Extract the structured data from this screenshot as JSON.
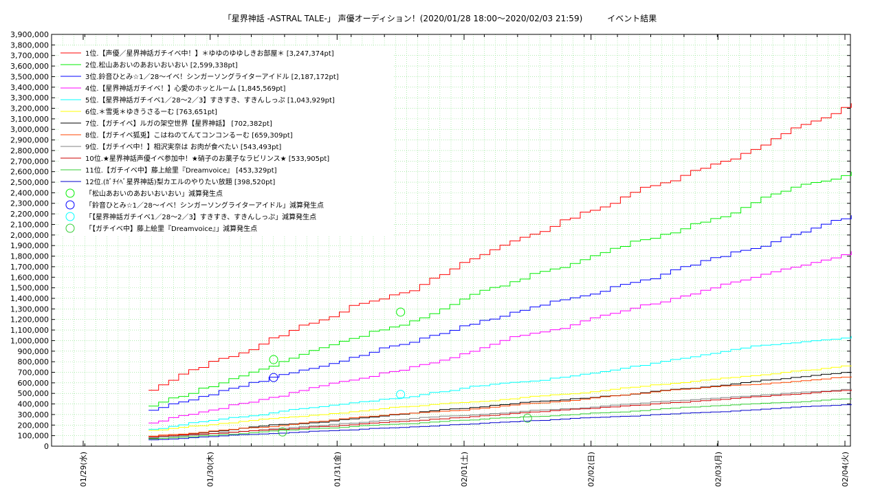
{
  "chart_data": {
    "type": "line",
    "title": "「星界神話 -ASTRAL TALE-」 声優オーディション！(2020/01/28 18:00〜2020/02/03 21:59)　　　イベント結果",
    "ylim": [
      0,
      3900000
    ],
    "y_ticks": [
      "0",
      "100,000",
      "200,000",
      "300,000",
      "400,000",
      "500,000",
      "600,000",
      "700,000",
      "800,000",
      "900,000",
      "1,000,000",
      "1,100,000",
      "1,200,000",
      "1,300,000",
      "1,400,000",
      "1,500,000",
      "1,600,000",
      "1,700,000",
      "1,800,000",
      "1,900,000",
      "2,000,000",
      "2,100,000",
      "2,200,000",
      "2,300,000",
      "2,400,000",
      "2,500,000",
      "2,600,000",
      "2,700,000",
      "2,800,000",
      "2,900,000",
      "3,000,000",
      "3,100,000",
      "3,200,000",
      "3,300,000",
      "3,400,000",
      "3,500,000",
      "3,600,000",
      "3,700,000",
      "3,800,000",
      "3,900,000"
    ],
    "x_ticks": [
      "01/29(水)",
      "01/30(木)",
      "01/31(金)",
      "02/01(土)",
      "02/02(日)",
      "02/03(月)",
      "02/04(火)"
    ],
    "x_start": "01/29 00:00",
    "x_end": "02/04 00:00",
    "grid": true,
    "legend_position": "top-left",
    "series": [
      {
        "name": "1位.【声優／星界神話ガチイベ中！】＊ゆゆのゆゆしきお部屋＊ [3,247,374pt]",
        "color": "#ff0000",
        "start": 530000,
        "final": 3247374
      },
      {
        "name": "2位.松山あおいのあおいおいおい [2,599,338pt]",
        "color": "#00ee00",
        "start": 380000,
        "final": 2599338
      },
      {
        "name": "3位.鈴音ひとみ☆1／28〜イベ！シンガーソングライターアイドル [2,187,172pt]",
        "color": "#0000ff",
        "start": 340000,
        "final": 2187172
      },
      {
        "name": "4位.【星界神話ガチイベ！】心愛のホッとルーム [1,845,569pt]",
        "color": "#ff00ff",
        "start": 220000,
        "final": 1845569
      },
      {
        "name": "5位.【星界神話ガチイベ1／28〜2／3】すきすき、すきんしっぷ [1,043,929pt]",
        "color": "#00ffff",
        "start": 160000,
        "final": 1043929
      },
      {
        "name": "6位.＊雪兎＊ゆきうさるーむ [763,651pt]",
        "color": "#ffff00",
        "start": 150000,
        "final": 763651
      },
      {
        "name": "7位.【ガチイベ】ルガの架空世界【星界神話】 [702,382pt]",
        "color": "#000000",
        "start": 75000,
        "final": 702382
      },
      {
        "name": "8位.【ガチイベ狐兎】こはねのてんてコンコンるーむ [659,309pt]",
        "color": "#ff4400",
        "start": 95000,
        "final": 659309
      },
      {
        "name": "9位.【ガチイベ中！】相沢実奈は お肉が食べたい [543,493pt]",
        "color": "#808080",
        "start": 80000,
        "final": 543493
      },
      {
        "name": "10位.★星界神話声優イベ参加中！★硝子のお菓子なラビリンス★ [533,905pt]",
        "color": "#cc0000",
        "start": 90000,
        "final": 533905
      },
      {
        "name": "11位.【ガチイベ中】藤上絵里『Dreamvoice』 [453,329pt]",
        "color": "#33cc33",
        "start": 70000,
        "final": 453329
      },
      {
        "name": "12位.(ｶﾞﾁｲﾍﾞ星界神話)梨カエルのやりたい放題 [398,520pt]",
        "color": "#0000cc",
        "start": 60000,
        "final": 398520
      }
    ],
    "deduction_legend": [
      {
        "label": "「松山あおいのあおいおいおい」減算発生点",
        "color": "#00ee00"
      },
      {
        "label": "「鈴音ひとみ☆1／28〜イベ！シンガーソングライターアイドル」減算発生点",
        "color": "#0000ff"
      },
      {
        "label": "「【星界神話ガチイベ1／28〜2／3】すきすき、すきんしっぷ」減算発生点",
        "color": "#00ffff"
      },
      {
        "label": "「【ガチイベ中】藤上絵里『Dreamvoice』」減算発生点",
        "color": "#33cc33"
      }
    ],
    "deduction_points": [
      {
        "series": 1,
        "x_day": 1.5,
        "y": 820000,
        "color": "#00ee00"
      },
      {
        "series": 1,
        "x_day": 2.5,
        "y": 1270000,
        "color": "#00ee00"
      },
      {
        "series": 2,
        "x_day": 1.5,
        "y": 650000,
        "color": "#0000ff"
      },
      {
        "series": 4,
        "x_day": 2.5,
        "y": 490000,
        "color": "#00ffff"
      },
      {
        "series": 10,
        "x_day": 1.57,
        "y": 135000,
        "color": "#33cc33"
      },
      {
        "series": 10,
        "x_day": 3.5,
        "y": 265000,
        "color": "#33cc33"
      }
    ]
  }
}
